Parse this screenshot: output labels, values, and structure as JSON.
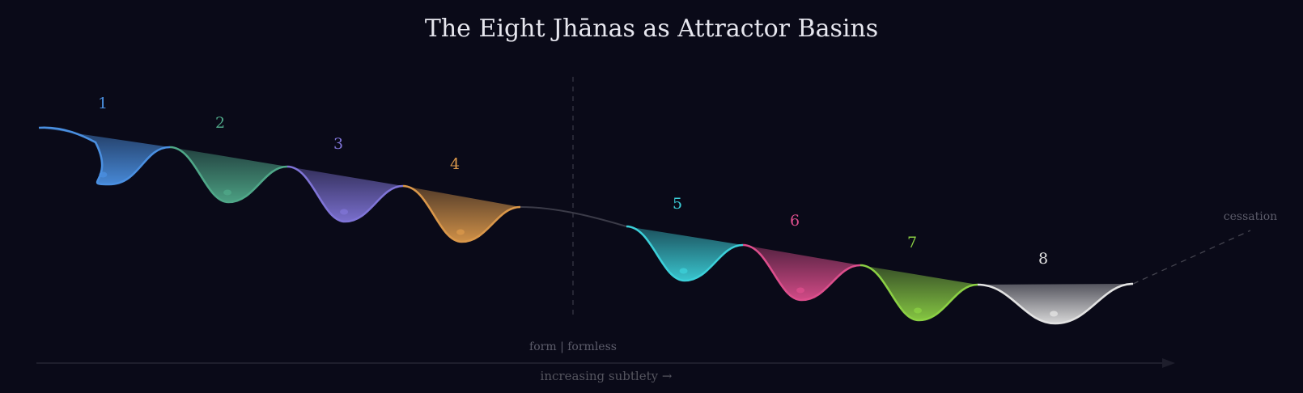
{
  "title": "The Eight Jhānas as Attractor Basins",
  "divider_label": "form | formless",
  "axis_label": "increasing subtlety →",
  "terminal_label": "cessation",
  "basins": [
    {
      "label": "1",
      "color": "#4a8fe0"
    },
    {
      "label": "2",
      "color": "#4fa788"
    },
    {
      "label": "3",
      "color": "#7f74d6"
    },
    {
      "label": "4",
      "color": "#d9974a"
    },
    {
      "label": "5",
      "color": "#3ccfd8"
    },
    {
      "label": "6",
      "color": "#dc4e8c"
    },
    {
      "label": "7",
      "color": "#8bcf44"
    },
    {
      "label": "8",
      "color": "#e2e2e2"
    }
  ]
}
